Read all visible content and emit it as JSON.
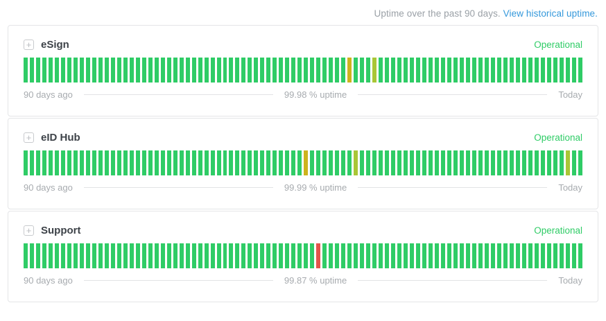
{
  "page": {
    "caption": "Uptime over the past 90 days.",
    "link_label": "View historical uptime."
  },
  "icons": {
    "expand": "+"
  },
  "legend": {
    "left": "90 days ago",
    "right": "Today"
  },
  "colors": {
    "operational": "#2fcc66",
    "degraded": "#cdb31c",
    "minor": "#a9c636",
    "major": "#e2554a",
    "link": "#3498db",
    "status_text": "#2fcc66"
  },
  "chart_data": {
    "type": "bar",
    "days_shown": 90,
    "note_left": "90 days ago",
    "note_right": "Today"
  },
  "services": [
    {
      "name": "eSign",
      "status": "Operational",
      "uptime_label": "99.98 % uptime",
      "uptime_percent": 99.98,
      "days": 90,
      "incidents": {
        "52": "degraded",
        "56": "minor"
      }
    },
    {
      "name": "eID Hub",
      "status": "Operational",
      "uptime_label": "99.99 % uptime",
      "uptime_percent": 99.99,
      "days": 90,
      "incidents": {
        "45": "degraded",
        "53": "minor",
        "87": "minor"
      }
    },
    {
      "name": "Support",
      "status": "Operational",
      "uptime_label": "99.87 % uptime",
      "uptime_percent": 99.87,
      "days": 90,
      "incidents": {
        "47": "major"
      }
    }
  ]
}
